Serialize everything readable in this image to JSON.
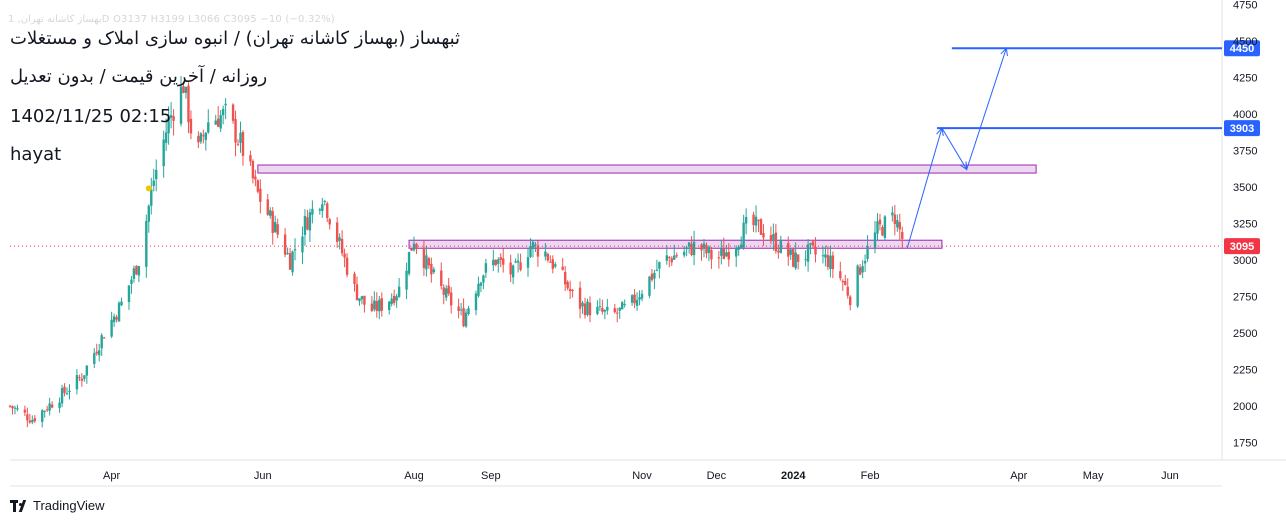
{
  "overlay": {
    "title": "ثبهساز (بهساز کاشانه تهران) / انبوه سازی املاک و مستغلات",
    "subtitle": "روزانه / آخرین قیمت / بدون تعدیل",
    "datetime": "1402/11/25 02:15",
    "author": "hayat",
    "ohlc": "بهساز کاشانه تهران, 1D  O3137  H3199  L3066  C3095  −10 (−0.32%)"
  },
  "branding": {
    "label": "TradingView"
  },
  "colors": {
    "up": "#26a69a",
    "down": "#ef5350",
    "level_line": "#2962ff",
    "zone_fill": "#e1bee7",
    "zone_border": "#9c27b0",
    "price_label": "#f23645",
    "axis_text": "#131722"
  },
  "chart_data": {
    "type": "candlestick",
    "title": "",
    "ylim": [
      1630,
      4780
    ],
    "y_ticks": [
      1750,
      2000,
      2250,
      2500,
      2750,
      3000,
      3250,
      3500,
      3750,
      4000,
      4250,
      4500,
      4750
    ],
    "x_labels": [
      "Apr",
      "Jun",
      "Aug",
      "Sep",
      "Nov",
      "Dec",
      "2024",
      "Feb",
      "Apr",
      "May",
      "Jun"
    ],
    "x_label_dates": [
      "2023-04-01",
      "2023-06-01",
      "2023-08-01",
      "2023-09-01",
      "2023-11-01",
      "2023-12-01",
      "2024-01-01",
      "2024-02-01",
      "2024-04-01",
      "2024-05-01",
      "2024-06-01"
    ],
    "last_price": 3095,
    "price_path": [
      [
        "2023-02-19",
        2000
      ],
      [
        "2023-02-28",
        1910
      ],
      [
        "2023-03-10",
        2050
      ],
      [
        "2023-03-20",
        2200
      ],
      [
        "2023-03-29",
        2500
      ],
      [
        "2023-04-05",
        2700
      ],
      [
        "2023-04-12",
        3000
      ],
      [
        "2023-04-18",
        3550
      ],
      [
        "2023-04-24",
        3950
      ],
      [
        "2023-04-30",
        4200
      ],
      [
        "2023-05-05",
        3700
      ],
      [
        "2023-05-10",
        3950
      ],
      [
        "2023-05-17",
        4000
      ],
      [
        "2023-05-23",
        3800
      ],
      [
        "2023-05-30",
        3450
      ],
      [
        "2023-06-05",
        3250
      ],
      [
        "2023-06-12",
        3000
      ],
      [
        "2023-06-18",
        3250
      ],
      [
        "2023-06-25",
        3450
      ],
      [
        "2023-07-01",
        3150
      ],
      [
        "2023-07-08",
        2800
      ],
      [
        "2023-07-14",
        2650
      ],
      [
        "2023-07-20",
        2700
      ],
      [
        "2023-07-26",
        2800
      ],
      [
        "2023-08-01",
        3150
      ],
      [
        "2023-08-08",
        2900
      ],
      [
        "2023-08-14",
        2750
      ],
      [
        "2023-08-21",
        2600
      ],
      [
        "2023-08-28",
        2900
      ],
      [
        "2023-09-03",
        3000
      ],
      [
        "2023-09-10",
        2900
      ],
      [
        "2023-09-17",
        3100
      ],
      [
        "2023-09-23",
        3050
      ],
      [
        "2023-09-29",
        2900
      ],
      [
        "2023-10-06",
        2700
      ],
      [
        "2023-10-13",
        2650
      ],
      [
        "2023-10-20",
        2620
      ],
      [
        "2023-10-27",
        2680
      ],
      [
        "2023-11-03",
        2850
      ],
      [
        "2023-11-10",
        3000
      ],
      [
        "2023-11-17",
        3050
      ],
      [
        "2023-11-23",
        3100
      ],
      [
        "2023-12-01",
        3000
      ],
      [
        "2023-12-08",
        3100
      ],
      [
        "2023-12-14",
        3250
      ],
      [
        "2023-12-20",
        3200
      ],
      [
        "2023-12-26",
        3100
      ],
      [
        "2024-01-01",
        3000
      ],
      [
        "2024-01-08",
        3050
      ],
      [
        "2024-01-15",
        3000
      ],
      [
        "2024-01-21",
        2850
      ],
      [
        "2024-01-24",
        2750
      ],
      [
        "2024-01-29",
        3000
      ],
      [
        "2024-02-04",
        3200
      ],
      [
        "2024-02-11",
        3300
      ],
      [
        "2024-02-15",
        3095
      ]
    ],
    "marker": {
      "date": "2023-04-16",
      "price": 3490,
      "color": "#f5c400"
    },
    "horizontal_levels": [
      {
        "price": 4450,
        "label": "4450",
        "start": "2024-03-05"
      },
      {
        "price": 3903,
        "label": "3903",
        "start": "2024-02-28"
      }
    ],
    "zones": [
      {
        "start": "2023-05-30",
        "end": "2024-04-08",
        "low": 3595,
        "high": 3650
      },
      {
        "start": "2023-07-30",
        "end": "2024-03-01",
        "low": 3080,
        "high": 3135
      }
    ],
    "projection": [
      [
        "2024-02-16",
        3080
      ],
      [
        "2024-03-01",
        3903
      ],
      [
        "2024-03-11",
        3620
      ],
      [
        "2024-03-27",
        4450
      ]
    ]
  }
}
